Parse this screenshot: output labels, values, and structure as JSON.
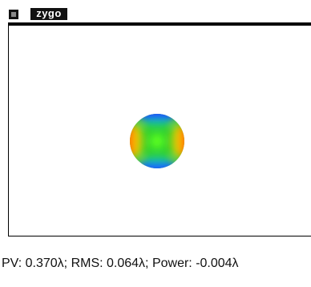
{
  "header": {
    "logo": "zygo"
  },
  "status": "PV: 0.370λ; RMS: 0.064λ; Power: -0.004λ"
}
